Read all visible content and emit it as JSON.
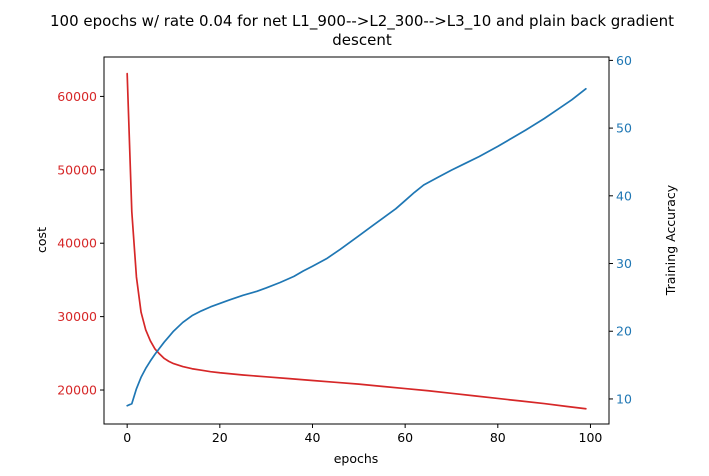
{
  "chart_data": {
    "type": "line",
    "title_lines": [
      "100 epochs w/ rate 0.04 for net L1_900-->L2_300-->L3_10 and plain back gradient",
      "descent"
    ],
    "xlabel": "epochs",
    "ylabel_left": "cost",
    "ylabel_right": "Training Accuracy",
    "xlim": [
      -5,
      104
    ],
    "ylim_left": [
      15370,
      65370
    ],
    "ylim_right": [
      6.3,
      60.5
    ],
    "x_ticks": [
      0,
      20,
      40,
      60,
      80,
      100
    ],
    "left_ticks": [
      20000,
      30000,
      40000,
      50000,
      60000
    ],
    "right_ticks": [
      10,
      20,
      30,
      40,
      50,
      60
    ],
    "left_color": "#d62728",
    "right_color": "#1f77b4",
    "grid": false,
    "series": [
      {
        "axis": "left",
        "color": "#d62728",
        "x": [
          0,
          1,
          2,
          3,
          4,
          5,
          6,
          7,
          8,
          9,
          10,
          12,
          14,
          16,
          18,
          20,
          25,
          30,
          35,
          40,
          45,
          50,
          55,
          60,
          65,
          70,
          75,
          80,
          85,
          90,
          95,
          99
        ],
        "values": [
          63100,
          44300,
          35400,
          30600,
          28200,
          26700,
          25600,
          24900,
          24300,
          23900,
          23600,
          23200,
          22900,
          22700,
          22500,
          22350,
          22050,
          21800,
          21550,
          21300,
          21050,
          20800,
          20500,
          20200,
          19900,
          19550,
          19200,
          18850,
          18500,
          18150,
          17750,
          17450
        ]
      },
      {
        "axis": "right",
        "color": "#1f77b4",
        "x": [
          0,
          1,
          2,
          3,
          4,
          5,
          6,
          7,
          8,
          9,
          10,
          12,
          14,
          16,
          18,
          20,
          22,
          25,
          28,
          30,
          33,
          36,
          38,
          40,
          43,
          46,
          50,
          53,
          56,
          58,
          60,
          62,
          64,
          67,
          70,
          73,
          76,
          80,
          83,
          86,
          90,
          93,
          96,
          99
        ],
        "values": [
          9.0,
          9.3,
          11.5,
          13.2,
          14.5,
          15.6,
          16.6,
          17.5,
          18.4,
          19.2,
          20.0,
          21.3,
          22.3,
          23.0,
          23.6,
          24.1,
          24.6,
          25.3,
          25.9,
          26.4,
          27.2,
          28.1,
          28.9,
          29.6,
          30.7,
          32.1,
          34.1,
          35.6,
          37.1,
          38.1,
          39.3,
          40.5,
          41.6,
          42.7,
          43.8,
          44.8,
          45.8,
          47.3,
          48.5,
          49.7,
          51.4,
          52.8,
          54.2,
          55.8
        ]
      }
    ]
  }
}
